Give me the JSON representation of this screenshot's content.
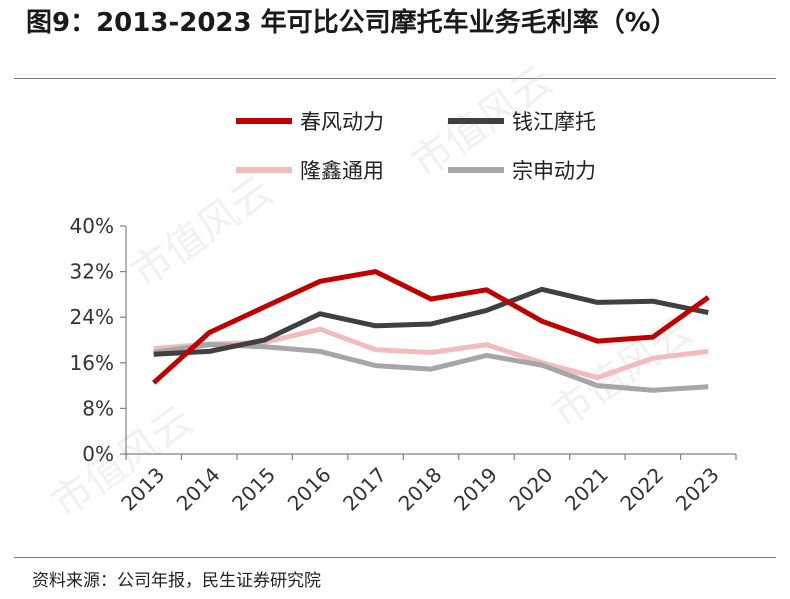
{
  "figure": {
    "title": "图9：2013-2023 年可比公司摩托车业务毛利率（%）",
    "source": "资料来源：公司年报，民生证券研究院",
    "watermark": "市值风云"
  },
  "chart_data": {
    "type": "line",
    "title": "",
    "xlabel": "",
    "ylabel": "",
    "x": [
      "2013",
      "2014",
      "2015",
      "2016",
      "2017",
      "2018",
      "2019",
      "2020",
      "2021",
      "2022",
      "2023"
    ],
    "ylim": [
      0,
      40
    ],
    "yticks": [
      0,
      8,
      16,
      24,
      32,
      40
    ],
    "ytick_labels": [
      "0%",
      "8%",
      "16%",
      "24%",
      "32%",
      "40%"
    ],
    "grid": false,
    "legend_position": "top",
    "series": [
      {
        "name": "春风动力",
        "color": "#c00000",
        "values": [
          12.5,
          21.3,
          25.8,
          30.3,
          32.0,
          27.2,
          28.8,
          23.3,
          19.8,
          20.5,
          27.5
        ]
      },
      {
        "name": "钱江摩托",
        "color": "#404040",
        "values": [
          17.5,
          18.0,
          20.0,
          24.6,
          22.5,
          22.8,
          25.2,
          28.9,
          26.6,
          26.8,
          24.8
        ]
      },
      {
        "name": "隆鑫通用",
        "color": "#f2bcbc",
        "values": [
          18.5,
          19.3,
          19.6,
          21.9,
          18.3,
          17.8,
          19.2,
          16.0,
          13.4,
          16.8,
          18.0
        ]
      },
      {
        "name": "宗申动力",
        "color": "#a6a6a6",
        "values": [
          17.8,
          19.2,
          18.8,
          18.0,
          15.5,
          14.9,
          17.3,
          15.6,
          12.0,
          11.2,
          11.8
        ]
      }
    ]
  }
}
